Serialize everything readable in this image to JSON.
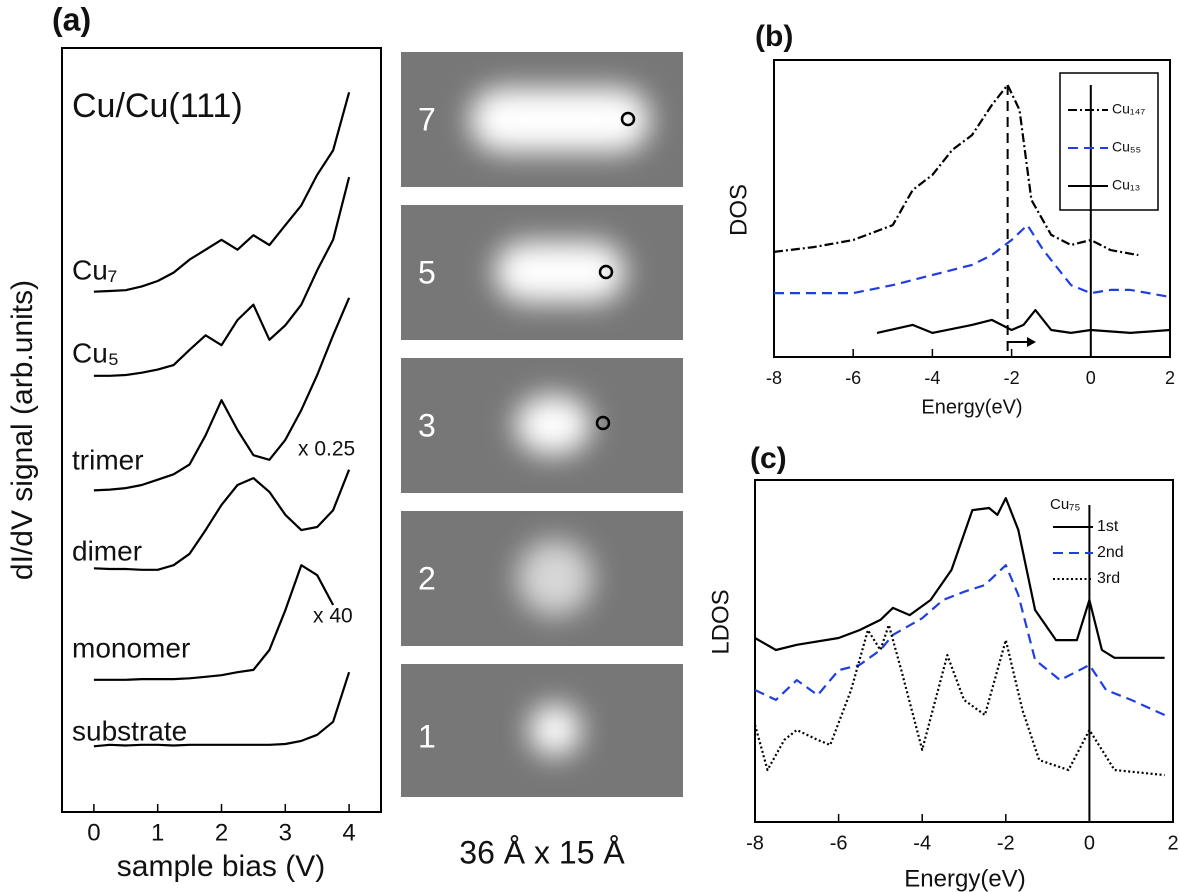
{
  "chart_data": [
    {
      "type": "line",
      "panel_label": "(a)",
      "x_label": "sample bias (V)",
      "y_label": "dI/dV signal (arb.units)",
      "annotations": [
        "Cu/Cu(111)",
        "x 0.25",
        "x 40"
      ],
      "xlim": [
        -0.5,
        4.5
      ],
      "xticks": [
        0,
        1,
        2,
        3,
        4
      ],
      "ylim": [
        0,
        100
      ],
      "x": [
        0,
        0.25,
        0.5,
        0.75,
        1,
        1.25,
        1.5,
        1.75,
        2,
        2.25,
        2.5,
        2.75,
        3,
        3.25,
        3.5,
        3.75,
        4
      ],
      "series": [
        {
          "name": "Cu₇",
          "color": "#000000",
          "dash": "solid",
          "values": [
            68.1,
            68.2,
            68.3,
            68.8,
            69.5,
            70.6,
            72.3,
            73.6,
            74.9,
            73.6,
            75.5,
            74.2,
            76.8,
            79.4,
            83.4,
            86.6,
            94.2
          ]
        },
        {
          "name": "Cu₅",
          "color": "#000000",
          "dash": "solid",
          "values": [
            57.1,
            57.1,
            57.2,
            57.5,
            57.9,
            58.5,
            60.5,
            62.4,
            61.1,
            64.4,
            66.4,
            61.8,
            63.7,
            66.4,
            70.9,
            74.9,
            83.1
          ]
        },
        {
          "name": "trimer",
          "color": "#000000",
          "dash": "solid",
          "values": [
            42.1,
            42.2,
            42.4,
            42.8,
            43.5,
            44.2,
            45.5,
            49.3,
            53.9,
            50.0,
            46.7,
            46.1,
            48.7,
            52.6,
            57.2,
            62.4,
            67.3
          ]
        },
        {
          "name": "dimer",
          "color": "#000000",
          "dash": "solid",
          "values": [
            31.9,
            31.8,
            31.8,
            31.7,
            31.7,
            32.3,
            33.8,
            36.9,
            40.2,
            42.8,
            43.7,
            41.9,
            38.9,
            36.9,
            37.3,
            39.5,
            44.8
          ]
        },
        {
          "name": "monomer",
          "color": "#000000",
          "dash": "solid",
          "values": [
            17.3,
            17.3,
            17.3,
            17.4,
            17.4,
            17.4,
            17.5,
            17.7,
            17.9,
            18.3,
            18.6,
            21.2,
            26.4,
            32.3,
            31.0,
            27.1,
            null
          ]
        },
        {
          "name": "substrate",
          "color": "#000000",
          "dash": "solid",
          "values": [
            8.6,
            8.8,
            8.7,
            8.8,
            8.8,
            8.7,
            8.8,
            8.8,
            8.8,
            8.8,
            8.8,
            8.8,
            8.9,
            9.3,
            10.1,
            11.8,
            18.3
          ]
        }
      ]
    },
    {
      "type": "line",
      "panel_label": "(b)",
      "x_label": "Energy(eV)",
      "y_label": "DOS",
      "xlim": [
        -8,
        2
      ],
      "xticks": [
        -8,
        -6,
        -4,
        -2,
        0,
        2
      ],
      "ylim": [
        0,
        100
      ],
      "vlines": [
        {
          "x": -2.1,
          "dash": "dashed"
        },
        {
          "x": 0,
          "dash": "solid"
        }
      ],
      "series": [
        {
          "name": "Cu₁₄₇",
          "color": "#000000",
          "dash": "dashdot",
          "x": [
            -8,
            -7,
            -6,
            -5,
            -4.5,
            -4,
            -3.5,
            -3,
            -2.5,
            -2.1,
            -1.8,
            -1.5,
            -1,
            -0.5,
            0,
            0.5,
            1.2
          ],
          "values": [
            35.4,
            37.0,
            39.4,
            44.4,
            56.2,
            61.3,
            69.7,
            74.7,
            84.8,
            91.6,
            83.2,
            52.9,
            41.1,
            37.7,
            39.4,
            36.0,
            34.3
          ]
        },
        {
          "name": "Cu₅₅",
          "color": "#1f3fe0",
          "dash": "dashed",
          "x": [
            -8,
            -6,
            -5,
            -4,
            -3,
            -2.5,
            -2,
            -1.6,
            -1.2,
            -0.5,
            0,
            0.5,
            1,
            2
          ],
          "values": [
            21.5,
            21.5,
            24.2,
            27.6,
            31.0,
            34.3,
            39.4,
            44.4,
            36.0,
            24.2,
            21.5,
            22.6,
            22.6,
            20.2
          ]
        },
        {
          "name": "Cu₁₃",
          "color": "#000000",
          "dash": "solid",
          "x": [
            -5.4,
            -4.5,
            -4,
            -3,
            -2.5,
            -2,
            -1.7,
            -1.4,
            -1,
            -0.5,
            0,
            1,
            2
          ],
          "values": [
            8.1,
            10.8,
            8.1,
            10.8,
            12.5,
            9.1,
            10.8,
            15.8,
            9.1,
            8.1,
            9.1,
            8.1,
            9.1
          ]
        }
      ]
    },
    {
      "type": "line",
      "panel_label": "(c)",
      "x_label": "Energy(eV)",
      "y_label": "LDOS",
      "legend_title": "Cu₇₅",
      "xlim": [
        -8,
        2
      ],
      "xticks": [
        -8,
        -6,
        -4,
        -2,
        0,
        2
      ],
      "ylim": [
        0,
        100
      ],
      "vlines": [
        {
          "x": 0,
          "dash": "solid"
        }
      ],
      "series": [
        {
          "name": "1st",
          "color": "#000000",
          "dash": "solid",
          "x": [
            -8,
            -7.5,
            -7,
            -6,
            -5.5,
            -5,
            -4.7,
            -4.3,
            -3.8,
            -3.3,
            -2.8,
            -2.4,
            -2.2,
            -2,
            -1.7,
            -1.3,
            -0.8,
            -0.3,
            0,
            0.3,
            0.6,
            1.8
          ],
          "values": [
            53.8,
            50.3,
            51.8,
            53.8,
            56.1,
            59.1,
            62.6,
            60.5,
            64.9,
            73.7,
            91.2,
            91.8,
            89.8,
            94.7,
            85.4,
            62.0,
            53.2,
            53.2,
            64.9,
            50.3,
            48.0,
            48.0
          ]
        },
        {
          "name": "2nd",
          "color": "#1f3fe0",
          "dash": "dashed",
          "x": [
            -8,
            -7.5,
            -7,
            -6.5,
            -6,
            -5.5,
            -5,
            -4.7,
            -4,
            -3.5,
            -3,
            -2.5,
            -2,
            -1.7,
            -1.3,
            -0.7,
            0,
            0.4,
            1,
            1.8
          ],
          "values": [
            38.6,
            35.7,
            41.5,
            37.1,
            44.4,
            45.9,
            50.3,
            54.7,
            59.6,
            64.9,
            67.3,
            69.3,
            75.1,
            66.4,
            47.4,
            41.5,
            45.9,
            38.6,
            35.7,
            31.3
          ]
        },
        {
          "name": "3rd",
          "color": "#000000",
          "dash": "dotted",
          "x": [
            -8,
            -7.7,
            -7.3,
            -7,
            -6.5,
            -6.2,
            -5.7,
            -5.3,
            -5,
            -4.8,
            -4.5,
            -4,
            -3.4,
            -3,
            -2.5,
            -2,
            -1.6,
            -1.2,
            -0.5,
            0,
            0.3,
            0.6,
            1.8
          ],
          "values": [
            28.4,
            15.2,
            24.0,
            26.9,
            24.0,
            22.5,
            38.6,
            56.1,
            50.3,
            57.6,
            44.4,
            21.1,
            48.8,
            35.7,
            31.3,
            53.2,
            32.7,
            18.1,
            15.2,
            26.9,
            21.1,
            15.2,
            13.7
          ]
        }
      ]
    }
  ],
  "images": {
    "caption": "36 Å x 15 Å",
    "panels": [
      {
        "label": "7"
      },
      {
        "label": "5"
      },
      {
        "label": "3"
      },
      {
        "label": "2"
      },
      {
        "label": "1"
      }
    ]
  }
}
